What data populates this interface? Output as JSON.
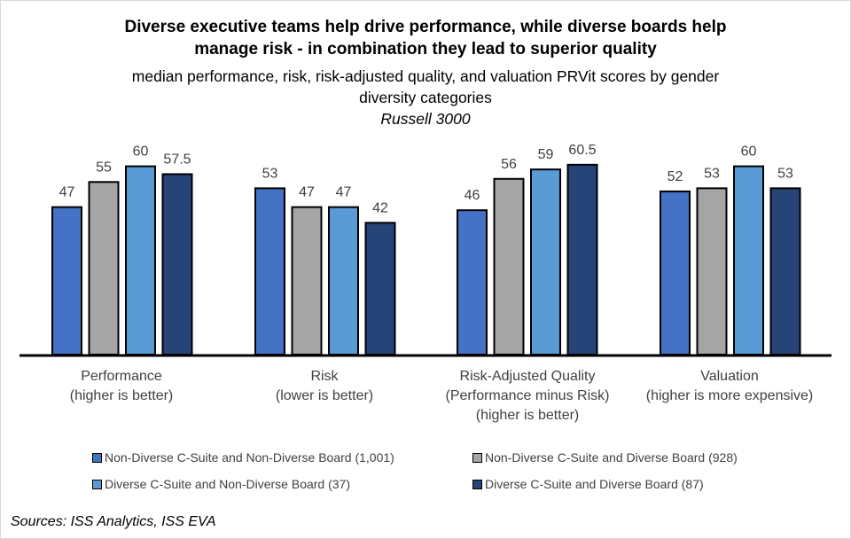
{
  "chart_data": {
    "type": "bar",
    "title": "Diverse executive teams help drive performance, while diverse boards help manage risk - in combination they lead to superior quality",
    "subtitle": "median performance, risk, risk-adjusted quality, and valuation PRVit scores by gender diversity categories",
    "subtitle2": "Russell 3000",
    "categories": [
      [
        "Performance",
        "(higher is better)"
      ],
      [
        "Risk",
        "(lower is better)"
      ],
      [
        "Risk-Adjusted Quality",
        "(Performance minus Risk)",
        "(higher is better)"
      ],
      [
        "Valuation",
        "(higher is more expensive)"
      ]
    ],
    "series": [
      {
        "name": "Non-Diverse C-Suite and Non-Diverse Board (1,001)",
        "color": "#4472c4",
        "values": [
          47,
          53,
          46,
          52
        ],
        "labels": [
          "47",
          "53",
          "46",
          "52"
        ]
      },
      {
        "name": "Non-Diverse C-Suite and Diverse Board (928)",
        "color": "#a5a5a5",
        "values": [
          55,
          47,
          56,
          53
        ],
        "labels": [
          "55",
          "47",
          "56",
          "53"
        ]
      },
      {
        "name": "Diverse C-Suite and Non-Diverse Board (37)",
        "color": "#5b9bd5",
        "values": [
          60,
          47,
          59,
          60
        ],
        "labels": [
          "60",
          "47",
          "59",
          "60"
        ]
      },
      {
        "name": "Diverse C-Suite and Diverse Board (87)",
        "color": "#264478",
        "values": [
          57.5,
          42,
          60.5,
          53
        ],
        "labels": [
          "57.5",
          "42",
          "60.5",
          "53"
        ]
      }
    ],
    "xlabel": "",
    "ylabel": "",
    "ylim": [
      0,
      62
    ],
    "grid": false,
    "legend": "bottom",
    "data_labels": true
  },
  "title": {
    "line1": "Diverse executive teams help drive performance, while diverse boards help",
    "line2": "manage risk - in combination they lead to superior quality",
    "sub1": "median performance, risk, risk-adjusted quality, and valuation PRVit scores by gender",
    "sub2": "diversity categories",
    "sub3": "Russell 3000"
  },
  "source": "Sources: ISS Analytics, ISS EVA"
}
